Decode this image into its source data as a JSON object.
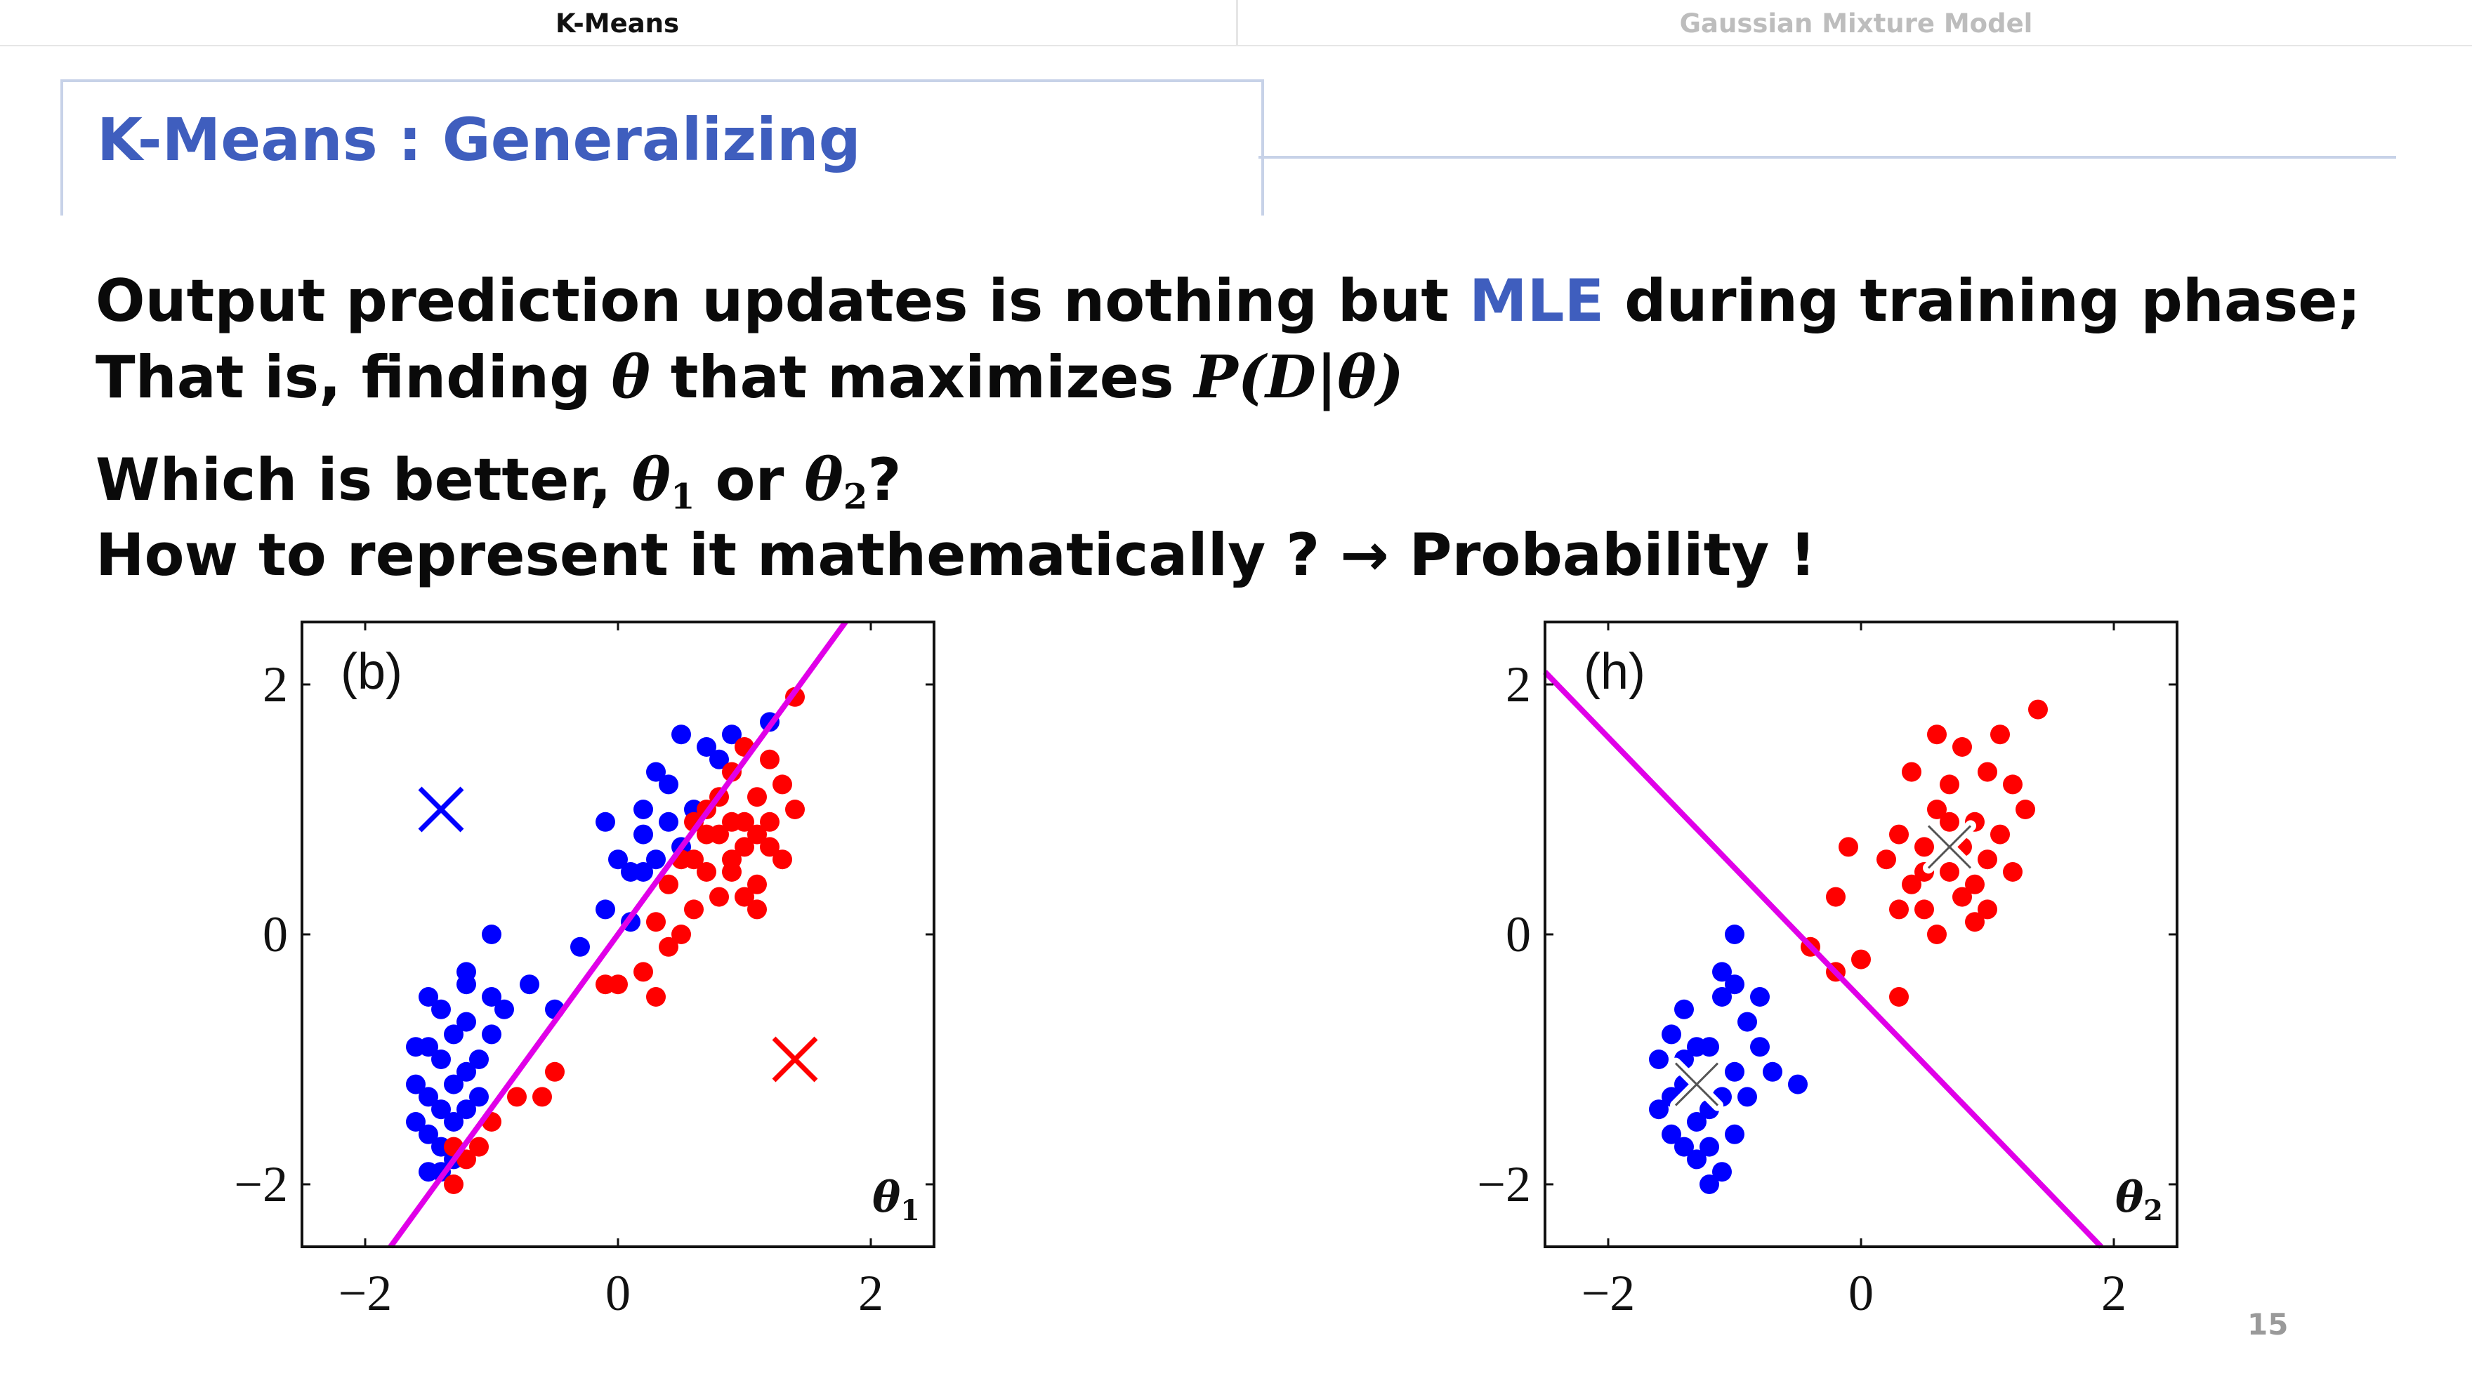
{
  "tabs": [
    {
      "label": "K-Means",
      "active": true
    },
    {
      "label": "Gaussian Mixture Model",
      "active": false
    }
  ],
  "title": "K-Means : Generalizing",
  "body": {
    "line1_pre": "Output prediction updates is nothing but ",
    "line1_accent": "MLE",
    "line1_post": " during training phase;",
    "line2_pre": "That is, finding ",
    "line2_theta": "θ",
    "line2_mid": " that maximizes ",
    "line2_expr": "P(D|θ)",
    "line3_pre": "Which is better, ",
    "line3_theta": "θ",
    "line3_sub1": "1",
    "line3_mid": " or ",
    "line3_sub2": "2",
    "line3_post": "?",
    "line4": "How to represent it mathematically ? → Probability !"
  },
  "page_number": "15",
  "colors": {
    "accent": "#3f5ebe",
    "cluster1": "#0000ff",
    "cluster2": "#ff0000",
    "boundary": "#e000e8"
  },
  "chart_data": [
    {
      "type": "scatter",
      "panel_label": "(b)",
      "theta_label": "θ",
      "theta_sub": "1",
      "xlim": [
        -2.5,
        2.5
      ],
      "ylim": [
        -2.5,
        2.5
      ],
      "x_ticks": [
        "−2",
        "0",
        "2"
      ],
      "y_ticks": [
        "2",
        "0",
        "−2"
      ],
      "series": [
        {
          "color": "#0000ff",
          "points": [
            [
              -1.6,
              -1.5
            ],
            [
              -1.5,
              -1.3
            ],
            [
              -1.4,
              -1.7
            ],
            [
              -1.3,
              -1.2
            ],
            [
              -1.5,
              -0.9
            ],
            [
              -1.2,
              -1.4
            ],
            [
              -1.4,
              -1.0
            ],
            [
              -1.6,
              -1.2
            ],
            [
              -1.3,
              -1.8
            ],
            [
              -1.1,
              -1.0
            ],
            [
              -1.5,
              -0.5
            ],
            [
              -1.2,
              -0.4
            ],
            [
              -1.4,
              -0.6
            ],
            [
              -1.0,
              -0.8
            ],
            [
              -1.3,
              -1.5
            ],
            [
              -1.5,
              -1.9
            ],
            [
              -1.2,
              -0.7
            ],
            [
              -1.6,
              -0.9
            ],
            [
              -1.4,
              -1.4
            ],
            [
              -1.1,
              -1.3
            ],
            [
              -1.0,
              -0.5
            ],
            [
              -1.2,
              -1.1
            ],
            [
              -1.5,
              -1.6
            ],
            [
              -1.3,
              -0.8
            ],
            [
              -1.4,
              -1.9
            ],
            [
              -0.9,
              -0.6
            ],
            [
              -1.0,
              0.0
            ],
            [
              -0.7,
              -0.4
            ],
            [
              -1.2,
              -0.3
            ],
            [
              -0.5,
              -0.6
            ],
            [
              -0.3,
              -0.1
            ],
            [
              -0.1,
              0.2
            ],
            [
              0.1,
              0.1
            ],
            [
              0.2,
              0.5
            ],
            [
              -0.1,
              0.9
            ],
            [
              0.2,
              1.0
            ],
            [
              0.3,
              1.3
            ],
            [
              0.5,
              1.6
            ],
            [
              0.4,
              1.2
            ],
            [
              0.7,
              1.5
            ],
            [
              0.9,
              1.6
            ],
            [
              0.6,
              1.0
            ],
            [
              0.2,
              0.8
            ],
            [
              0.4,
              0.9
            ],
            [
              0.1,
              0.5
            ],
            [
              0.3,
              0.6
            ],
            [
              1.2,
              1.7
            ],
            [
              0.8,
              1.4
            ],
            [
              0.5,
              0.7
            ],
            [
              0.0,
              0.6
            ]
          ]
        },
        {
          "color": "#ff0000",
          "points": [
            [
              0.5,
              0.6
            ],
            [
              0.7,
              0.8
            ],
            [
              0.9,
              0.5
            ],
            [
              1.0,
              0.9
            ],
            [
              1.2,
              0.7
            ],
            [
              0.8,
              0.3
            ],
            [
              0.6,
              0.2
            ],
            [
              1.1,
              1.1
            ],
            [
              1.3,
              0.6
            ],
            [
              0.9,
              1.3
            ],
            [
              1.0,
              0.3
            ],
            [
              0.7,
              1.0
            ],
            [
              1.2,
              1.4
            ],
            [
              0.4,
              0.4
            ],
            [
              0.8,
              0.8
            ],
            [
              1.1,
              0.2
            ],
            [
              0.5,
              0.0
            ],
            [
              0.3,
              0.1
            ],
            [
              0.6,
              0.9
            ],
            [
              1.4,
              1.0
            ],
            [
              1.0,
              1.5
            ],
            [
              1.4,
              1.9
            ],
            [
              1.2,
              0.9
            ],
            [
              0.9,
              0.6
            ],
            [
              0.7,
              0.5
            ],
            [
              0.2,
              -0.3
            ],
            [
              0.4,
              -0.1
            ],
            [
              0.0,
              -0.4
            ],
            [
              -0.1,
              -0.4
            ],
            [
              0.3,
              -0.5
            ],
            [
              -0.5,
              -1.1
            ],
            [
              -0.6,
              -1.3
            ],
            [
              -0.8,
              -1.3
            ],
            [
              -1.0,
              -1.5
            ],
            [
              -1.1,
              -1.7
            ],
            [
              -1.2,
              -1.8
            ],
            [
              -1.3,
              -2.0
            ],
            [
              -1.3,
              -1.7
            ],
            [
              1.1,
              0.4
            ],
            [
              0.8,
              1.1
            ],
            [
              1.0,
              0.7
            ],
            [
              0.6,
              0.6
            ],
            [
              1.3,
              1.2
            ],
            [
              0.9,
              0.9
            ],
            [
              1.1,
              0.8
            ]
          ]
        }
      ],
      "centroids": [
        {
          "x": -1.4,
          "y": 1.0,
          "color": "#0000ff"
        },
        {
          "x": 1.4,
          "y": -1.0,
          "color": "#ff0000"
        }
      ],
      "boundary": [
        [
          -1.8,
          -2.5
        ],
        [
          1.8,
          2.5
        ]
      ]
    },
    {
      "type": "scatter",
      "panel_label": "(h)",
      "theta_label": "θ",
      "theta_sub": "2",
      "xlim": [
        -2.5,
        2.5
      ],
      "ylim": [
        -2.5,
        2.5
      ],
      "x_ticks": [
        "−2",
        "0",
        "2"
      ],
      "y_ticks": [
        "2",
        "0",
        "−2"
      ],
      "series": [
        {
          "color": "#0000ff",
          "points": [
            [
              -1.5,
              -0.8
            ],
            [
              -1.4,
              -1.2
            ],
            [
              -1.6,
              -1.0
            ],
            [
              -1.3,
              -1.5
            ],
            [
              -1.2,
              -0.9
            ],
            [
              -1.1,
              -1.3
            ],
            [
              -1.4,
              -0.6
            ],
            [
              -1.5,
              -1.6
            ],
            [
              -1.3,
              -1.8
            ],
            [
              -1.2,
              -2.0
            ],
            [
              -1.0,
              -1.1
            ],
            [
              -1.1,
              -0.5
            ],
            [
              -0.9,
              -0.7
            ],
            [
              -1.0,
              -1.6
            ],
            [
              -1.2,
              -1.4
            ],
            [
              -1.5,
              -1.3
            ],
            [
              -1.6,
              -1.4
            ],
            [
              -1.3,
              -0.9
            ],
            [
              -1.4,
              -1.7
            ],
            [
              -0.8,
              -0.9
            ],
            [
              -1.0,
              0.0
            ],
            [
              -0.7,
              -1.1
            ],
            [
              -0.5,
              -1.2
            ],
            [
              -1.0,
              -0.4
            ],
            [
              -1.1,
              -0.3
            ],
            [
              -0.8,
              -0.5
            ],
            [
              -1.4,
              -1.0
            ],
            [
              -1.2,
              -1.7
            ],
            [
              -0.9,
              -1.3
            ],
            [
              -1.1,
              -1.9
            ]
          ]
        },
        {
          "color": "#ff0000",
          "points": [
            [
              0.5,
              0.7
            ],
            [
              0.7,
              0.5
            ],
            [
              0.9,
              0.9
            ],
            [
              1.0,
              0.6
            ],
            [
              0.6,
              1.0
            ],
            [
              0.8,
              0.3
            ],
            [
              1.1,
              0.8
            ],
            [
              0.4,
              0.4
            ],
            [
              0.7,
              1.2
            ],
            [
              1.0,
              1.3
            ],
            [
              1.2,
              0.5
            ],
            [
              0.3,
              0.8
            ],
            [
              0.5,
              0.2
            ],
            [
              0.8,
              1.5
            ],
            [
              1.3,
              1.0
            ],
            [
              0.6,
              0.0
            ],
            [
              0.9,
              0.1
            ],
            [
              1.1,
              1.6
            ],
            [
              1.4,
              1.8
            ],
            [
              0.2,
              0.6
            ],
            [
              -0.2,
              0.3
            ],
            [
              0.0,
              -0.2
            ],
            [
              -0.4,
              -0.1
            ],
            [
              -0.2,
              -0.3
            ],
            [
              0.3,
              -0.5
            ],
            [
              -0.1,
              0.7
            ],
            [
              0.6,
              1.6
            ],
            [
              0.4,
              1.3
            ],
            [
              1.2,
              1.2
            ],
            [
              0.7,
              0.9
            ],
            [
              0.9,
              0.4
            ],
            [
              0.5,
              0.5
            ],
            [
              1.0,
              0.2
            ],
            [
              0.8,
              0.7
            ],
            [
              0.3,
              0.2
            ]
          ]
        }
      ],
      "centroids": [
        {
          "x": -1.3,
          "y": -1.2,
          "color": "#ffffff"
        },
        {
          "x": 0.7,
          "y": 0.7,
          "color": "#ffffff"
        }
      ],
      "boundary": [
        [
          -2.5,
          2.1
        ],
        [
          1.9,
          -2.5
        ]
      ]
    }
  ]
}
